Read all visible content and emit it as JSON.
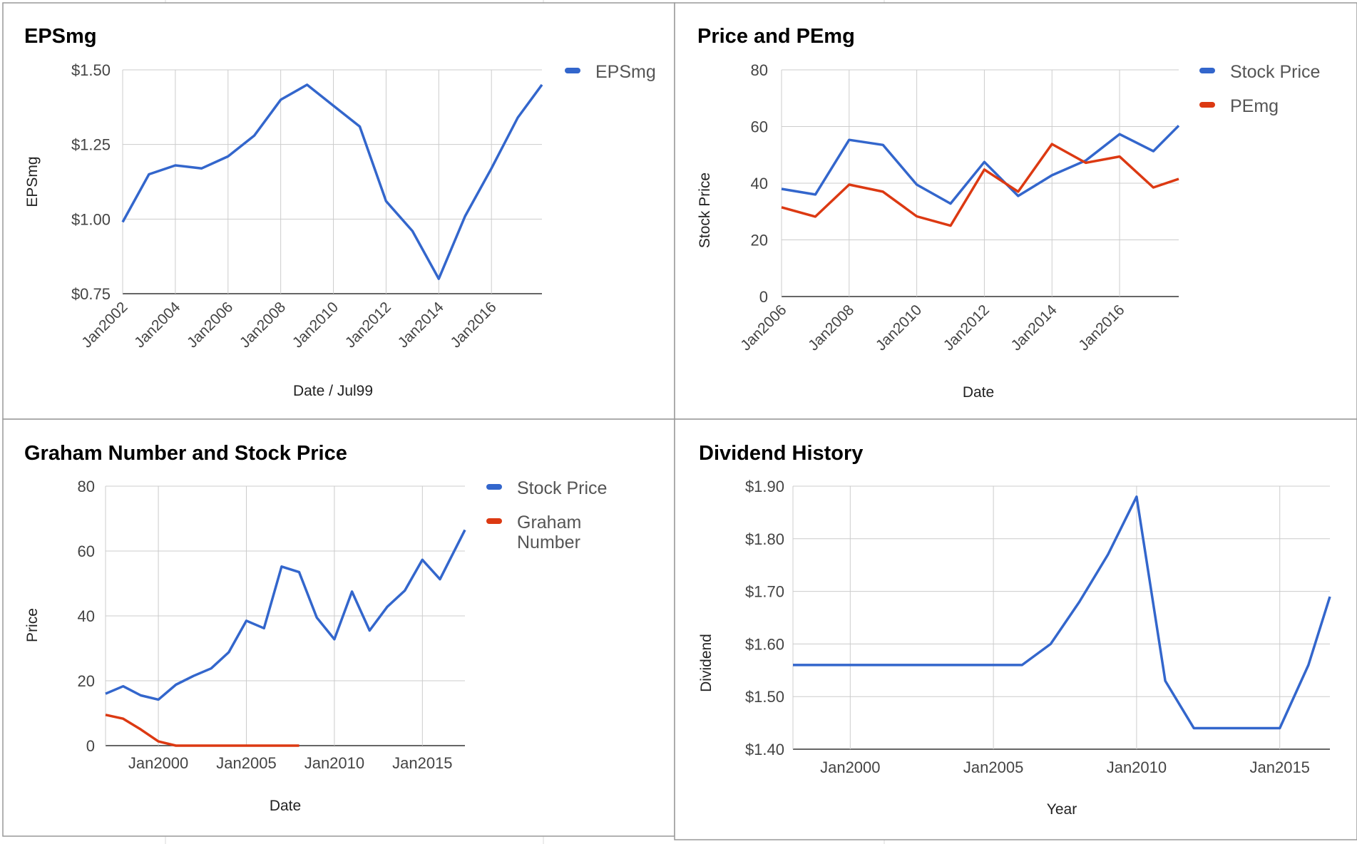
{
  "colors": {
    "blue": "#3366cc",
    "red": "#dc3912",
    "grid": "#cccccc",
    "axis": "#333333",
    "panel_border": "#999999",
    "sheet_grid": "#d9d9d9"
  },
  "chart_data": [
    {
      "id": "epsmg",
      "type": "line",
      "title": "EPSmg",
      "xlabel": "Date / Jul99",
      "ylabel": "EPSmg",
      "x_axis_kind": "date",
      "xlim": [
        "2002-01",
        "2017-12"
      ],
      "x_ticks": [
        "2002-01",
        "2004-01",
        "2006-01",
        "2008-01",
        "2010-01",
        "2012-01",
        "2014-01",
        "2016-01"
      ],
      "x_tick_labels": [
        "Jan2002",
        "Jan2004",
        "Jan2006",
        "Jan2008",
        "Jan2010",
        "Jan2012",
        "Jan2014",
        "Jan2016"
      ],
      "ylim": [
        0.75,
        1.5
      ],
      "y_ticks": [
        0.75,
        1.0,
        1.25,
        1.5
      ],
      "y_tick_labels": [
        "$0.75",
        "$1.00",
        "$1.25",
        "$1.50"
      ],
      "grid": true,
      "legend_position": "right",
      "series": [
        {
          "name": "EPSmg",
          "color": "#3366cc",
          "x": [
            "2002-01",
            "2003-01",
            "2004-01",
            "2005-01",
            "2006-01",
            "2007-01",
            "2008-01",
            "2009-01",
            "2010-01",
            "2011-01",
            "2012-01",
            "2013-01",
            "2014-01",
            "2015-01",
            "2016-01",
            "2017-01",
            "2017-12"
          ],
          "y": [
            0.99,
            1.15,
            1.18,
            1.17,
            1.21,
            1.28,
            1.4,
            1.45,
            1.38,
            1.31,
            1.06,
            0.96,
            0.8,
            1.01,
            1.17,
            1.34,
            1.45
          ]
        }
      ]
    },
    {
      "id": "price-pemg",
      "type": "line",
      "title": "Price and PEmg",
      "xlabel": "Date",
      "ylabel": "Stock Price",
      "x_axis_kind": "date",
      "xlim": [
        "2006-01",
        "2017-10"
      ],
      "x_ticks": [
        "2006-01",
        "2008-01",
        "2010-01",
        "2012-01",
        "2014-01",
        "2016-01"
      ],
      "x_tick_labels": [
        "Jan2006",
        "Jan2008",
        "Jan2010",
        "Jan2012",
        "Jan2014",
        "Jan2016"
      ],
      "ylim": [
        0,
        80
      ],
      "y_ticks": [
        0,
        20,
        40,
        60,
        80
      ],
      "y_tick_labels": [
        "0",
        "20",
        "40",
        "60",
        "80"
      ],
      "grid": true,
      "legend_position": "right",
      "series": [
        {
          "name": "Stock Price",
          "color": "#3366cc",
          "x": [
            "2006-01",
            "2007-01",
            "2008-01",
            "2009-01",
            "2010-01",
            "2011-01",
            "2012-01",
            "2013-01",
            "2014-01",
            "2015-01",
            "2016-01",
            "2017-01",
            "2017-10"
          ],
          "y": [
            38,
            36,
            55.3,
            53.5,
            39.5,
            32.8,
            47.5,
            35.5,
            42.8,
            48,
            57.3,
            51.3,
            60.3
          ]
        },
        {
          "name": "PEmg",
          "color": "#dc3912",
          "x": [
            "2006-01",
            "2007-01",
            "2008-01",
            "2009-01",
            "2010-01",
            "2011-01",
            "2012-01",
            "2013-01",
            "2014-01",
            "2015-01",
            "2016-01",
            "2017-01",
            "2017-10"
          ],
          "y": [
            31.5,
            28.2,
            39.5,
            37,
            28.3,
            25,
            44.8,
            37,
            53.8,
            47.2,
            49.4,
            38.5,
            41.5
          ]
        }
      ]
    },
    {
      "id": "graham",
      "type": "line",
      "title": "Graham Number and Stock Price",
      "xlabel": "Date",
      "ylabel": "Price",
      "x_axis_kind": "date",
      "xlim": [
        "1997-01",
        "2017-06"
      ],
      "x_ticks": [
        "2000-01",
        "2005-01",
        "2010-01",
        "2015-01"
      ],
      "x_tick_labels": [
        "Jan2000",
        "Jan2005",
        "Jan2010",
        "Jan2015"
      ],
      "ylim": [
        0,
        80
      ],
      "y_ticks": [
        0,
        20,
        40,
        60,
        80
      ],
      "y_tick_labels": [
        "0",
        "20",
        "40",
        "60",
        "80"
      ],
      "grid": true,
      "legend_position": "right",
      "series": [
        {
          "name": "Stock Price",
          "color": "#3366cc",
          "x": [
            "1997-01",
            "1998-01",
            "1999-01",
            "2000-01",
            "2001-01",
            "2002-01",
            "2003-01",
            "2004-01",
            "2005-01",
            "2006-01",
            "2007-01",
            "2008-01",
            "2009-01",
            "2010-01",
            "2011-01",
            "2012-01",
            "2013-01",
            "2014-01",
            "2015-01",
            "2016-01",
            "2017-06"
          ],
          "y": [
            16,
            18.3,
            15.5,
            14.2,
            18.8,
            21.5,
            23.8,
            28.8,
            38.5,
            36.2,
            55.2,
            53.5,
            39.5,
            32.8,
            47.5,
            35.5,
            42.8,
            47.8,
            57.3,
            51.3,
            66.5
          ]
        },
        {
          "name": "Graham Number",
          "legend_lines": [
            "Graham",
            "Number"
          ],
          "color": "#dc3912",
          "x": [
            "1997-01",
            "1998-01",
            "1999-01",
            "2000-01",
            "2001-01",
            "2002-01",
            "2003-01",
            "2004-01",
            "2005-01",
            "2006-01",
            "2007-01",
            "2008-01"
          ],
          "y": [
            9.5,
            8.3,
            5,
            1.3,
            0,
            0,
            0,
            0,
            0,
            0,
            0,
            0
          ]
        }
      ]
    },
    {
      "id": "dividend",
      "type": "line",
      "title": "Dividend History",
      "xlabel": "Year",
      "ylabel": "Dividend",
      "x_axis_kind": "date",
      "xlim": [
        "1998-01",
        "2016-10"
      ],
      "x_ticks": [
        "2000-01",
        "2005-01",
        "2010-01",
        "2015-01"
      ],
      "x_tick_labels": [
        "Jan2000",
        "Jan2005",
        "Jan2010",
        "Jan2015"
      ],
      "ylim": [
        1.4,
        1.9
      ],
      "y_ticks": [
        1.4,
        1.5,
        1.6,
        1.7,
        1.8,
        1.9
      ],
      "y_tick_labels": [
        "$1.40",
        "$1.50",
        "$1.60",
        "$1.70",
        "$1.80",
        "$1.90"
      ],
      "grid": true,
      "legend_position": "none",
      "series": [
        {
          "color": "#3366cc",
          "x": [
            "1998-01",
            "2006-01",
            "2007-01",
            "2008-01",
            "2009-01",
            "2010-01",
            "2011-01",
            "2012-01",
            "2015-01",
            "2016-01",
            "2016-10"
          ],
          "y": [
            1.56,
            1.56,
            1.6,
            1.68,
            1.77,
            1.88,
            1.53,
            1.44,
            1.44,
            1.56,
            1.69
          ]
        }
      ]
    }
  ]
}
